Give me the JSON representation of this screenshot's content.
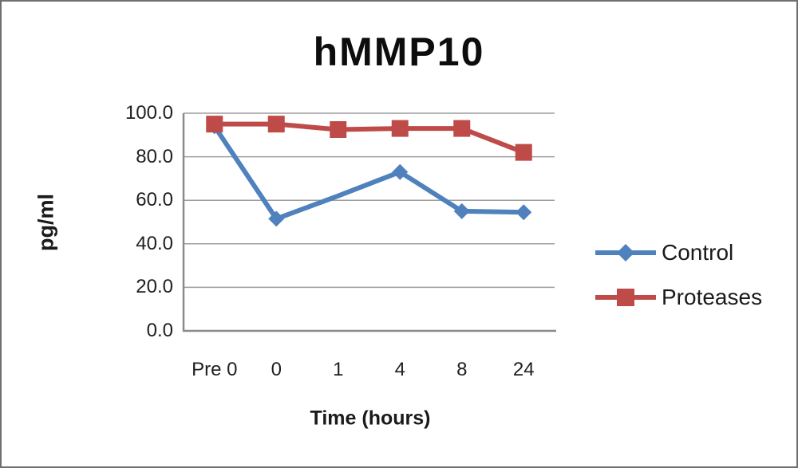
{
  "chart_data": {
    "type": "line",
    "title": "hMMP10",
    "ylabel": "pg/ml",
    "xlabel": "Time (hours)",
    "categories": [
      "Pre 0",
      "0",
      "1",
      "4",
      "8",
      "24"
    ],
    "series": [
      {
        "name": "Control",
        "color": "#4F81BD",
        "marker": "diamond",
        "values": [
          94,
          51.5,
          62,
          73,
          55,
          54.5
        ],
        "markers_visible": [
          true,
          true,
          false,
          true,
          true,
          true
        ]
      },
      {
        "name": "Proteases",
        "color": "#BE4B48",
        "marker": "square",
        "values": [
          95,
          95,
          92.5,
          93,
          93,
          82
        ],
        "markers_visible": [
          true,
          true,
          true,
          true,
          true,
          true
        ]
      }
    ],
    "ylim": [
      0,
      100
    ],
    "yticks": [
      0,
      20,
      40,
      60,
      80,
      100
    ],
    "ytick_labels": [
      "0.0",
      "20.0",
      "40.0",
      "60.0",
      "80.0",
      "100.0"
    ],
    "grid": "horizontal",
    "legend_position": "right",
    "gridline_color": "#9e9e9e",
    "axis_color": "#8a8a8a",
    "background_color": "#ffffff"
  }
}
